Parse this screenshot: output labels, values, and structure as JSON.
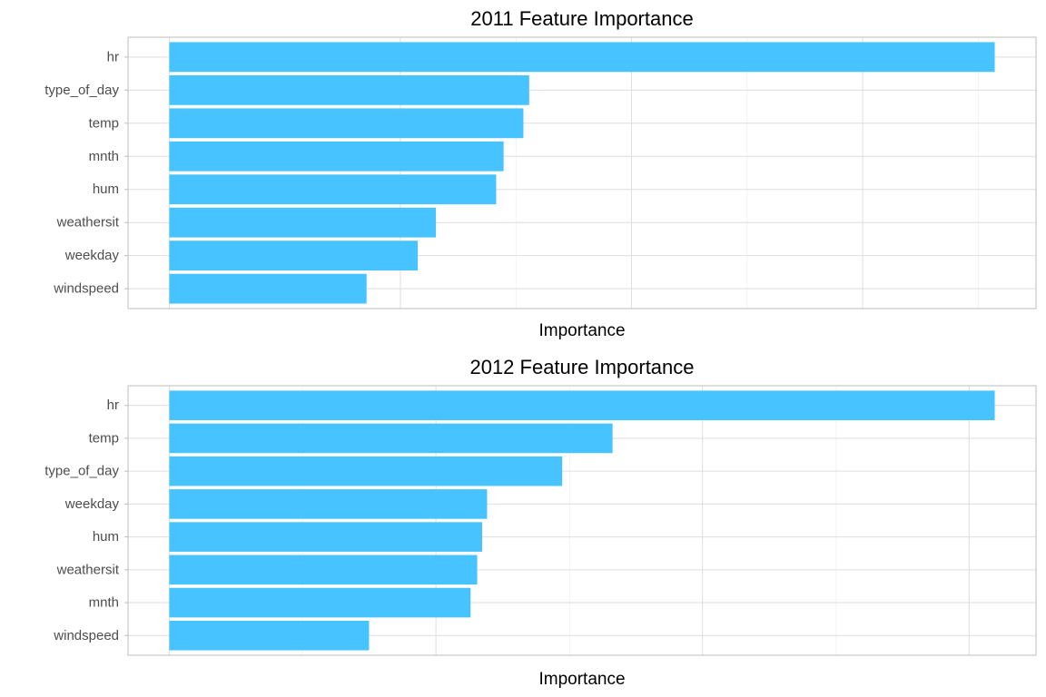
{
  "chart_data": [
    {
      "type": "bar",
      "orientation": "horizontal",
      "title": "2011 Feature Importance",
      "xlabel": "Importance",
      "ylabel": "",
      "categories": [
        "hr",
        "type_of_day",
        "temp",
        "mnth",
        "hum",
        "weathersit",
        "weekday",
        "windspeed"
      ],
      "values": [
        1.0,
        0.436,
        0.429,
        0.405,
        0.396,
        0.323,
        0.301,
        0.239
      ],
      "xlim": [
        -0.05,
        1.05
      ],
      "major_grid": [
        0,
        0.28,
        0.56,
        0.84
      ],
      "minor_grid": [
        0.42,
        0.7,
        0.98
      ],
      "x_tick_labels_visible": false,
      "grid": true,
      "legend": "none",
      "bar_color": "#47C3FF"
    },
    {
      "type": "bar",
      "orientation": "horizontal",
      "title": "2012 Feature Importance",
      "xlabel": "Importance",
      "ylabel": "",
      "categories": [
        "hr",
        "temp",
        "type_of_day",
        "weekday",
        "hum",
        "weathersit",
        "mnth",
        "windspeed"
      ],
      "values": [
        1.0,
        0.537,
        0.476,
        0.385,
        0.379,
        0.373,
        0.365,
        0.242
      ],
      "xlim": [
        -0.05,
        1.05
      ],
      "major_grid": [
        0,
        0.323,
        0.646,
        0.969
      ],
      "minor_grid": [
        0.161,
        0.485,
        0.808
      ],
      "x_tick_labels_visible": false,
      "grid": true,
      "legend": "none",
      "bar_color": "#47C3FF"
    }
  ]
}
